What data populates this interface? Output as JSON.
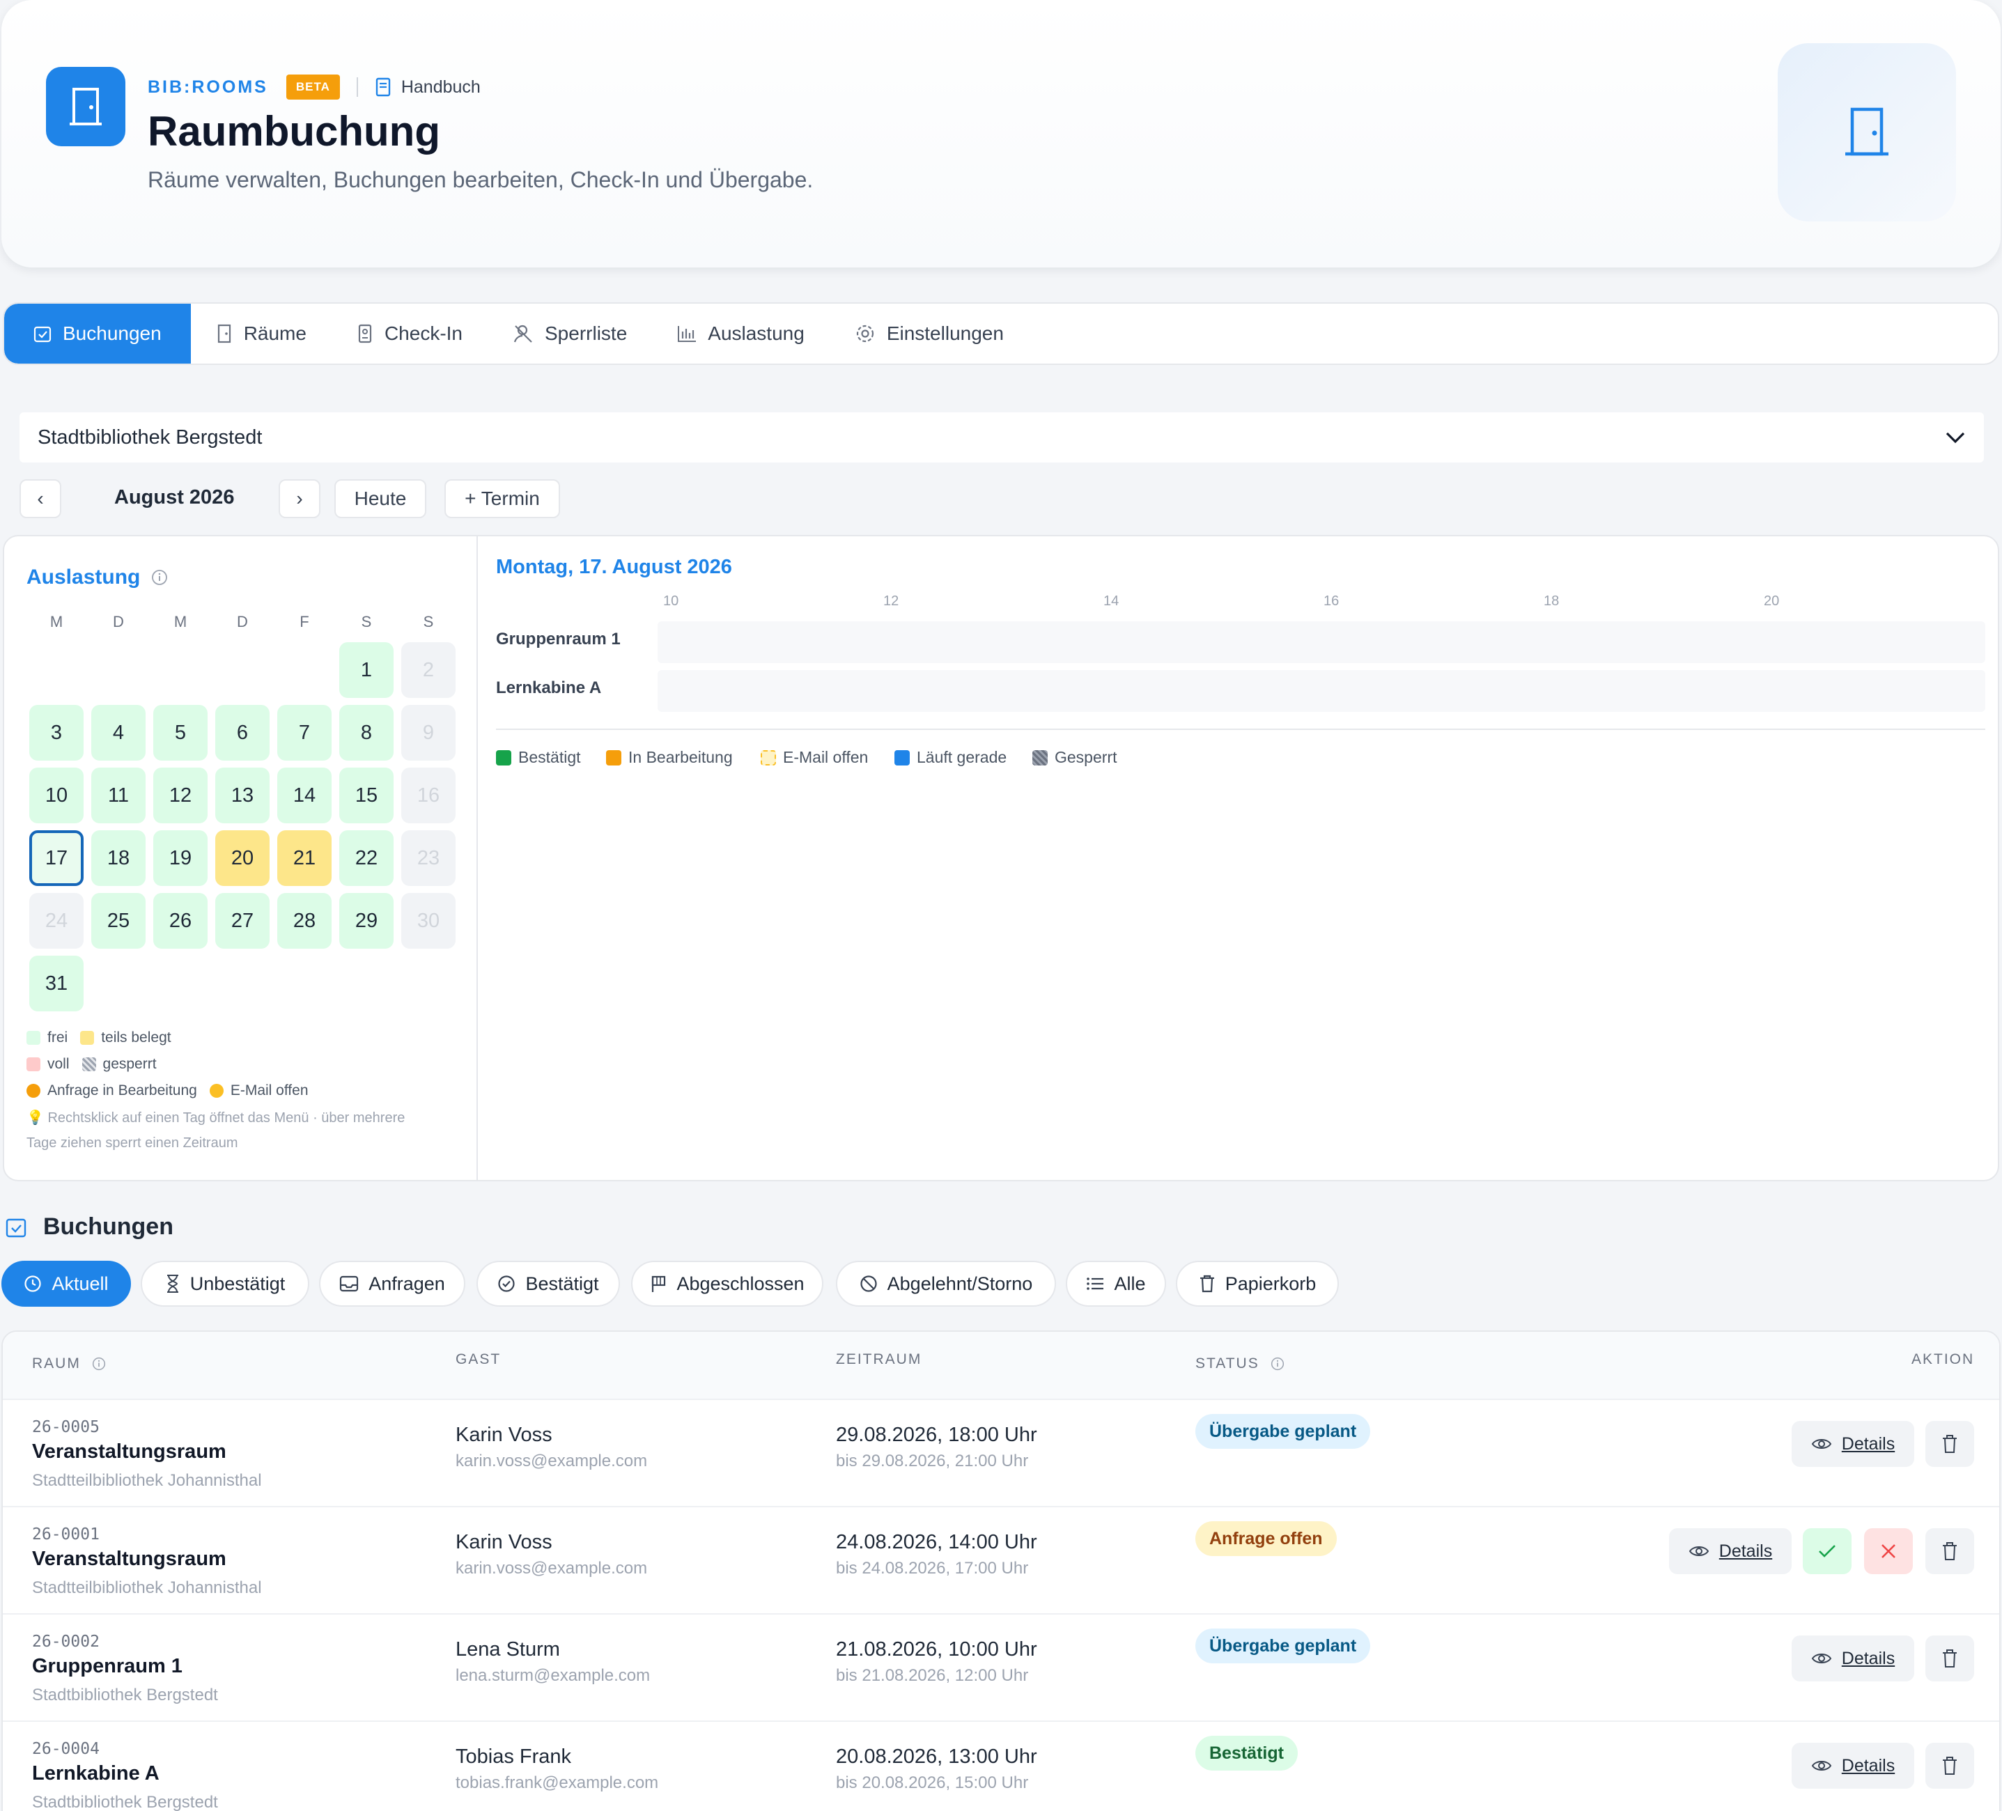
{
  "header": {
    "brand": "BIB:ROOMS",
    "beta": "BETA",
    "handbook": "Handbuch",
    "title": "Raumbuchung",
    "subtitle": "Räume verwalten, Buchungen bearbeiten, Check-In und Übergabe."
  },
  "tabs": [
    {
      "label": "Buchungen",
      "icon": "calendar-check-icon",
      "active": true
    },
    {
      "label": "Räume",
      "icon": "door-icon"
    },
    {
      "label": "Check-In",
      "icon": "badge-icon"
    },
    {
      "label": "Sperrliste",
      "icon": "user-block-icon"
    },
    {
      "label": "Auslastung",
      "icon": "bar-chart-icon"
    },
    {
      "label": "Einstellungen",
      "icon": "gear-icon"
    }
  ],
  "location": {
    "selected": "Stadtbibliothek Bergstedt"
  },
  "month_nav": {
    "prev": "‹",
    "label": "August 2026",
    "next": "›",
    "today": "Heute",
    "add": "+ Termin"
  },
  "calendar": {
    "title": "Auslastung",
    "weekdays": [
      "M",
      "D",
      "M",
      "D",
      "F",
      "S",
      "S"
    ],
    "today": 17,
    "partial_days": [
      20,
      21
    ],
    "weekend_days": [
      2,
      9,
      16,
      23,
      24,
      30
    ],
    "legend": {
      "free": "frei",
      "partial": "teils belegt",
      "full": "voll",
      "blocked": "gesperrt",
      "request": "Anfrage in Bearbeitung",
      "email": "E-Mail offen"
    },
    "hint_line1": "Rechtsklick auf einen Tag öffnet das Menü · über mehrere",
    "hint_line2": "Tage ziehen sperrt einen Zeitraum",
    "colors": {
      "free": "#dcfce7",
      "partial": "#fde68a",
      "full": "#fecaca",
      "accent": "#1f84e8"
    }
  },
  "day_view": {
    "heading": "Montag, 17. August 2026",
    "hours": [
      "10",
      "12",
      "14",
      "16",
      "18",
      "20"
    ],
    "rooms": [
      "Gruppenraum 1",
      "Lernkabine A"
    ],
    "legend": {
      "confirmed": "Bestätigt",
      "processing": "In Bearbeitung",
      "email": "E-Mail offen",
      "running": "Läuft gerade",
      "blocked": "Gesperrt"
    }
  },
  "bookings": {
    "heading": "Buchungen",
    "filters": [
      {
        "label": "Aktuell",
        "active": true
      },
      {
        "label": "Unbestätigt"
      },
      {
        "label": "Anfragen"
      },
      {
        "label": "Bestätigt"
      },
      {
        "label": "Abgeschlossen"
      },
      {
        "label": "Abgelehnt/Storno"
      },
      {
        "label": "Alle"
      },
      {
        "label": "Papierkorb"
      }
    ],
    "columns": {
      "room": "RAUM",
      "guest": "GAST",
      "period": "ZEITRAUM",
      "status": "STATUS",
      "action": "AKTION"
    },
    "details_label": "Details",
    "rows": [
      {
        "code": "26-0005",
        "room": "Veranstaltungsraum",
        "branch": "Stadtteilbibliothek Johannisthal",
        "guest": "Karin Voss",
        "email": "karin.voss@example.com",
        "start": "29.08.2026, 18:00 Uhr",
        "end": "bis 29.08.2026, 21:00 Uhr",
        "status": "Übergabe geplant"
      },
      {
        "code": "26-0001",
        "room": "Veranstaltungsraum",
        "branch": "Stadtteilbibliothek Johannisthal",
        "guest": "Karin Voss",
        "email": "karin.voss@example.com",
        "start": "24.08.2026, 14:00 Uhr",
        "end": "bis 24.08.2026, 17:00 Uhr",
        "status": "Anfrage offen"
      },
      {
        "code": "26-0002",
        "room": "Gruppenraum 1",
        "branch": "Stadtbibliothek Bergstedt",
        "guest": "Lena Sturm",
        "email": "lena.sturm@example.com",
        "start": "21.08.2026, 10:00 Uhr",
        "end": "bis 21.08.2026, 12:00 Uhr",
        "status": "Übergabe geplant"
      },
      {
        "code": "26-0004",
        "room": "Lernkabine A",
        "branch": "Stadtbibliothek Bergstedt",
        "guest": "Tobias Frank",
        "email": "tobias.frank@example.com",
        "start": "20.08.2026, 13:00 Uhr",
        "end": "bis 20.08.2026, 15:00 Uhr",
        "status": "Bestätigt"
      }
    ]
  }
}
